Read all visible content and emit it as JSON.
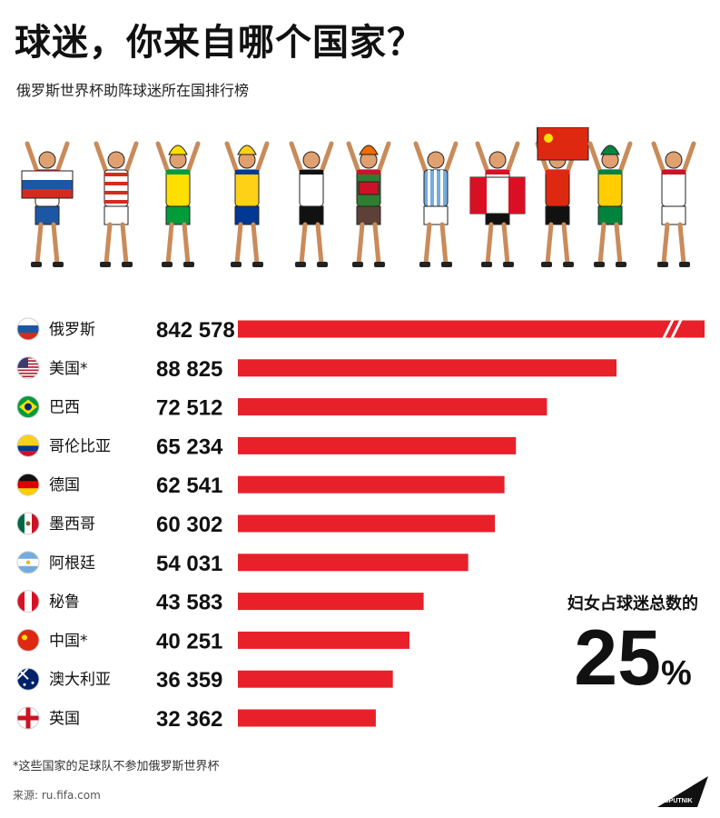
{
  "header": {
    "title": "球迷，你来自哪个国家？",
    "subtitle": "俄罗斯世界杯助阵球迷所在国排行榜"
  },
  "chart_data": {
    "type": "bar",
    "orientation": "horizontal",
    "categories": [
      "俄罗斯",
      "美国*",
      "巴西",
      "哥伦比亚",
      "德国",
      "墨西哥",
      "阿根廷",
      "秘鲁",
      "中国*",
      "澳大利亚",
      "英国"
    ],
    "value_labels": [
      "842 578",
      "88 825",
      "72 512",
      "65 234",
      "62 541",
      "60 302",
      "54 031",
      "43 583",
      "40 251",
      "36 359",
      "32 362"
    ],
    "values": [
      842578,
      88825,
      72512,
      65234,
      62541,
      60302,
      54031,
      43583,
      40251,
      36359,
      32362
    ],
    "scale_break_on_first_bar": true,
    "flag_icons": [
      "russia-flag-icon",
      "usa-flag-icon",
      "brazil-flag-icon",
      "colombia-flag-icon",
      "germany-flag-icon",
      "mexico-flag-icon",
      "argentina-flag-icon",
      "peru-flag-icon",
      "china-flag-icon",
      "australia-flag-icon",
      "england-flag-icon"
    ],
    "bar_color": "#e8202a",
    "grid": false,
    "title": "",
    "xlabel": "",
    "ylabel": ""
  },
  "callout": {
    "label": "妇女占球迷总数的",
    "value": "25",
    "unit": "%"
  },
  "footnote": "*这些国家的足球队不参加俄罗斯世界杯",
  "source": "来源: ru.fifa.com",
  "logo": {
    "text": "SPUTNIK"
  },
  "colors": {
    "bar": "#e8202a",
    "text": "#111111",
    "background": "#ffffff"
  }
}
